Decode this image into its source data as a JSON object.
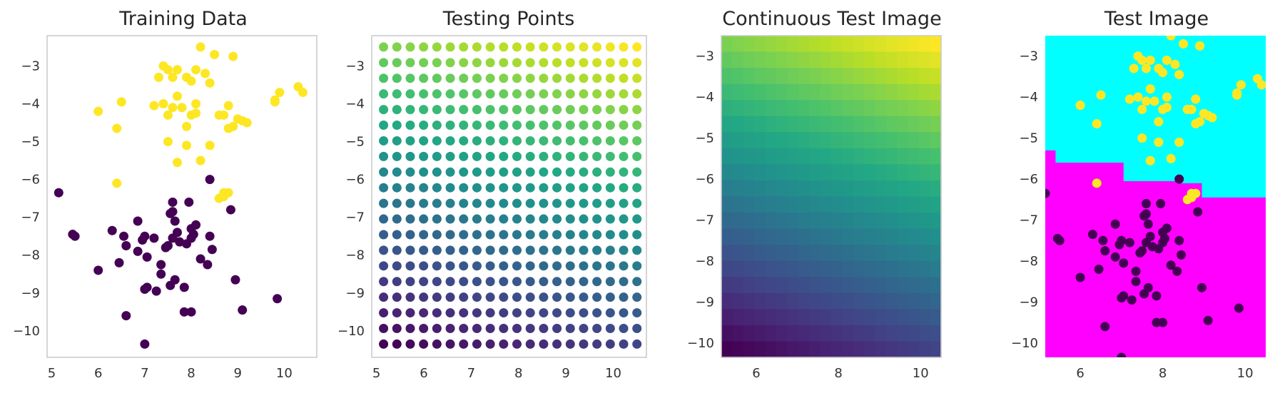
{
  "chart_data": [
    {
      "type": "scatter",
      "title": "Training Data",
      "xlabel": "",
      "ylabel": "",
      "xlim": [
        4.9,
        10.7
      ],
      "ylim": [
        -10.7,
        -2.2
      ],
      "xticks": [
        5,
        6,
        7,
        8,
        9,
        10
      ],
      "yticks": [
        -10,
        -9,
        -8,
        -7,
        -6,
        -5,
        -4,
        -3
      ],
      "grid": false,
      "series": [
        {
          "class": 1,
          "color": "#fde725",
          "x": [
            8.2,
            8.5,
            7.9,
            8.1,
            8.3,
            7.4,
            7.5,
            7.7,
            8.9,
            7.6,
            7.3,
            8.0,
            8.4,
            7.7,
            7.4,
            6.5,
            7.8,
            7.2,
            7.5,
            8.1,
            8.0,
            7.9,
            8.6,
            8.7,
            8.9,
            8.8,
            9.0,
            9.1,
            9.2,
            9.9,
            9.8,
            10.3,
            10.4,
            9.8,
            6.0,
            6.4,
            7.6,
            7.5,
            7.9,
            8.4,
            8.2,
            8.8,
            8.7,
            8.6,
            8.1,
            7.7,
            6.4,
            8.8,
            8.7
          ],
          "y": [
            -2.5,
            -2.7,
            -3.3,
            -3.1,
            -3.2,
            -3.0,
            -3.1,
            -3.1,
            -2.75,
            -3.3,
            -3.3,
            -3.4,
            -3.45,
            -3.8,
            -4.0,
            -3.95,
            -4.1,
            -4.05,
            -4.3,
            -4.0,
            -4.3,
            -4.6,
            -4.3,
            -4.3,
            -4.6,
            -4.05,
            -4.4,
            -4.45,
            -4.5,
            -3.7,
            -3.9,
            -3.55,
            -3.7,
            -3.95,
            -4.2,
            -4.65,
            -4.1,
            -5.0,
            -5.1,
            -5.1,
            -5.5,
            -4.65,
            -6.35,
            -6.5,
            -4.25,
            -5.55,
            -6.1,
            -6.35,
            -6.45
          ]
        },
        {
          "class": 0,
          "color": "#440154",
          "x": [
            5.15,
            5.45,
            5.5,
            6.0,
            6.3,
            6.45,
            6.6,
            6.55,
            6.85,
            6.95,
            7.0,
            7.05,
            6.85,
            7.05,
            7.2,
            7.35,
            7.35,
            7.45,
            7.5,
            7.55,
            7.6,
            7.6,
            7.65,
            7.55,
            7.7,
            7.6,
            7.75,
            7.85,
            7.9,
            7.95,
            8.0,
            8.05,
            8.0,
            8.1,
            8.2,
            8.35,
            8.4,
            8.4,
            8.45,
            8.85,
            8.95,
            9.1,
            9.85,
            7.0,
            7.25,
            7.65,
            7.85,
            8.0,
            6.6,
            7.0
          ],
          "y": [
            -6.35,
            -7.45,
            -7.5,
            -8.4,
            -7.35,
            -8.2,
            -7.75,
            -7.5,
            -7.1,
            -7.6,
            -7.5,
            -8.85,
            -7.9,
            -8.05,
            -7.55,
            -8.25,
            -8.5,
            -7.8,
            -7.75,
            -8.8,
            -6.6,
            -6.85,
            -7.1,
            -6.9,
            -7.4,
            -7.55,
            -7.65,
            -8.85,
            -7.7,
            -6.6,
            -7.55,
            -7.45,
            -7.3,
            -7.2,
            -8.1,
            -8.25,
            -6.0,
            -7.5,
            -7.85,
            -6.8,
            -8.65,
            -9.45,
            -9.15,
            -8.9,
            -8.95,
            -8.65,
            -9.5,
            -9.5,
            -9.6,
            -10.35
          ]
        }
      ]
    },
    {
      "type": "scatter",
      "title": "Testing Points",
      "xlabel": "",
      "ylabel": "",
      "xlim": [
        4.9,
        10.7
      ],
      "ylim": [
        -10.7,
        -2.2
      ],
      "xticks": [
        5,
        6,
        7,
        8,
        9,
        10
      ],
      "yticks": [
        -10,
        -9,
        -8,
        -7,
        -6,
        -5,
        -4,
        -3
      ],
      "grid": false,
      "grid_points": {
        "x_start": 5.15,
        "x_end": 10.5,
        "x_count": 20,
        "y_start": -2.5,
        "y_end": -10.35,
        "y_count": 20,
        "colormap": "viridis"
      }
    },
    {
      "type": "heatmap",
      "title": "Continuous Test Image",
      "xlabel": "",
      "ylabel": "",
      "xlim": [
        5.15,
        10.5
      ],
      "ylim": [
        -10.35,
        -2.5
      ],
      "xticks": [
        6,
        8,
        10
      ],
      "yticks": [
        -10,
        -9,
        -8,
        -7,
        -6,
        -5,
        -4,
        -3
      ],
      "rows": 20,
      "colormap": "viridis",
      "value_range": [
        0,
        1
      ]
    },
    {
      "type": "heatmap",
      "title": "Test Image",
      "xlabel": "",
      "ylabel": "",
      "xlim": [
        5.15,
        10.5
      ],
      "ylim": [
        -10.35,
        -2.5
      ],
      "xticks": [
        6,
        8,
        10
      ],
      "yticks": [
        -10,
        -9,
        -8,
        -7,
        -6,
        -5,
        -4,
        -3
      ],
      "region_colors": {
        "class_1": "#00ffff",
        "class_0": "#ff00ff"
      },
      "boundary": [
        {
          "x_from": 5.15,
          "x_to": 5.4,
          "y": -5.3
        },
        {
          "x_from": 5.4,
          "x_to": 7.05,
          "y": -5.6
        },
        {
          "x_from": 7.05,
          "x_to": 8.35,
          "y": -6.05
        },
        {
          "x_from": 8.35,
          "x_to": 8.95,
          "y": -6.1
        },
        {
          "x_from": 8.95,
          "x_to": 10.5,
          "y": -6.45
        }
      ],
      "overlay": "training_data"
    }
  ]
}
